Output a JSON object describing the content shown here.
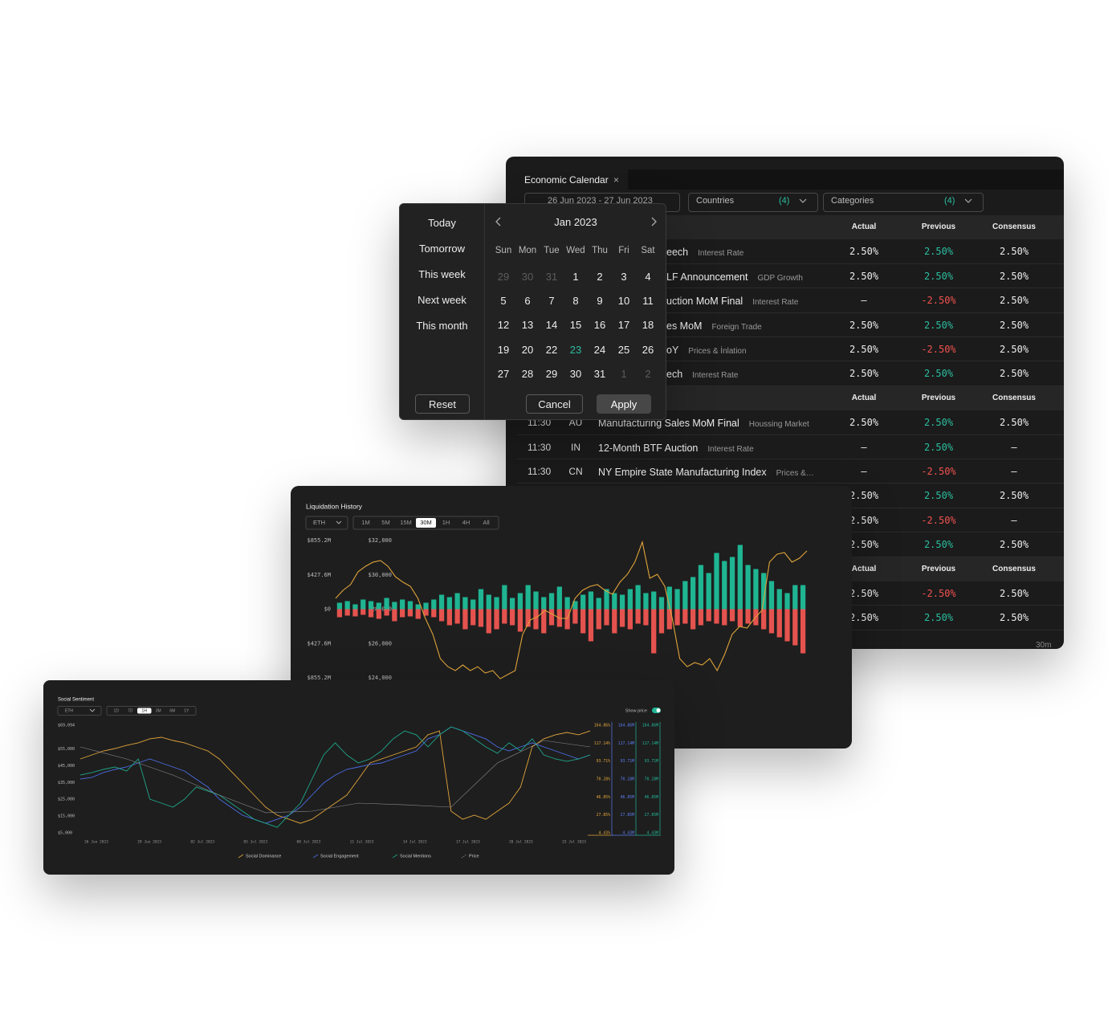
{
  "calendar": {
    "tab": "Economic Calendar",
    "tab_close": "×",
    "date_range": "26 Jun 2023  -  27 Jun 2023",
    "filters": [
      {
        "label": "Countries",
        "count": "(4)"
      },
      {
        "label": "Categories",
        "count": "(4)"
      }
    ],
    "columns": [
      "Actual",
      "Previous",
      "Consensus"
    ],
    "groups": [
      {
        "rows": [
          {
            "event": "eech",
            "category": "Interest Rate",
            "actual": "2.50%",
            "previous": "2.50%",
            "consensus": "2.50%"
          },
          {
            "event": "LF Announcement",
            "category": "GDP Growth",
            "actual": "2.50%",
            "previous": "2.50%",
            "consensus": "2.50%"
          },
          {
            "event": "uction MoM Final",
            "category": "Interest Rate",
            "actual": "–",
            "previous": "-2.50%",
            "consensus": "2.50%"
          },
          {
            "event": "es MoM",
            "category": "Foreign Trade",
            "actual": "2.50%",
            "previous": "2.50%",
            "consensus": "2.50%"
          },
          {
            "event": "oY",
            "category": "Prices & İnlation",
            "actual": "2.50%",
            "previous": "-2.50%",
            "consensus": "2.50%"
          },
          {
            "event": "ech",
            "category": "Interest Rate",
            "actual": "2.50%",
            "previous": "2.50%",
            "consensus": "2.50%"
          }
        ]
      },
      {
        "rows": [
          {
            "time": "11:30",
            "country": "AU",
            "event": "Manufacturing Sales MoM Final",
            "category": "Houssing Market",
            "actual": "2.50%",
            "previous": "2.50%",
            "consensus": "2.50%"
          },
          {
            "time": "11:30",
            "country": "IN",
            "event": "12-Month BTF Auction",
            "category": "Interest Rate",
            "actual": "–",
            "previous": "2.50%",
            "consensus": "–"
          },
          {
            "time": "11:30",
            "country": "CN",
            "event": "NY Empire State Manufacturing Index",
            "category": "Prices &…",
            "actual": "–",
            "previous": "-2.50%",
            "consensus": "–"
          },
          {
            "actual": "2.50%",
            "previous": "2.50%",
            "consensus": "2.50%"
          },
          {
            "actual": "2.50%",
            "previous": "-2.50%",
            "consensus": "–"
          },
          {
            "actual": "2.50%",
            "previous": "2.50%",
            "consensus": "2.50%"
          }
        ]
      },
      {
        "rows": [
          {
            "actual": "2.50%",
            "previous": "-2.50%",
            "consensus": "2.50%"
          },
          {
            "actual": "2.50%",
            "previous": "2.50%",
            "consensus": "2.50%"
          }
        ]
      }
    ],
    "footer": "30m"
  },
  "date_picker": {
    "presets": [
      "Today",
      "Tomorrow",
      "This week",
      "Next week",
      "This month"
    ],
    "reset": "Reset",
    "month": "Jan 2023",
    "weekdays": [
      "Sun",
      "Mon",
      "Tue",
      "Wed",
      "Thu",
      "Fri",
      "Sat"
    ],
    "weeks": [
      [
        {
          "day": 29,
          "muted": true
        },
        {
          "day": 30,
          "muted": true
        },
        {
          "day": 31,
          "muted": true
        },
        {
          "day": 1
        },
        {
          "day": 2
        },
        {
          "day": 3
        },
        {
          "day": 4
        }
      ],
      [
        {
          "day": 5
        },
        {
          "day": 6
        },
        {
          "day": 7
        },
        {
          "day": 8
        },
        {
          "day": 9
        },
        {
          "day": 10
        },
        {
          "day": 11
        }
      ],
      [
        {
          "day": 12
        },
        {
          "day": 13
        },
        {
          "day": 14
        },
        {
          "day": 15
        },
        {
          "day": 16
        },
        {
          "day": 17
        },
        {
          "day": 18
        }
      ],
      [
        {
          "day": 19
        },
        {
          "day": 20
        },
        {
          "day": 22
        },
        {
          "day": 23,
          "selected": true
        },
        {
          "day": 24
        },
        {
          "day": 25
        },
        {
          "day": 26
        }
      ],
      [
        {
          "day": 27
        },
        {
          "day": 28
        },
        {
          "day": 29
        },
        {
          "day": 30
        },
        {
          "day": 31
        },
        {
          "day": 1,
          "muted": true
        },
        {
          "day": 2,
          "muted": true
        }
      ]
    ],
    "cancel": "Cancel",
    "apply": "Apply"
  },
  "chart_data": [
    {
      "type": "bar",
      "title": "Liquidation History",
      "selector": "ETH",
      "timeframes": [
        "1M",
        "5M",
        "15M",
        "30M",
        "1H",
        "4H",
        "All"
      ],
      "active_timeframe": 3,
      "ylim": [
        -855.2,
        855.2
      ],
      "yticks": [
        {
          "value": 855.2,
          "label": "$855.2M"
        },
        {
          "value": 427.6,
          "label": "$427.6M"
        },
        {
          "value": 0,
          "label": "$0"
        },
        {
          "value": -427.6,
          "label": "$427.6M"
        },
        {
          "value": -855.2,
          "label": "$855.2M"
        }
      ],
      "y2lim": [
        24000,
        32000
      ],
      "y2ticks": [
        {
          "value": 32000,
          "label": "$32,000"
        },
        {
          "value": 30000,
          "label": "$30,000"
        },
        {
          "value": 28000,
          "label": "$28,000"
        },
        {
          "value": 26000,
          "label": "$26,000"
        },
        {
          "value": 24000,
          "label": "$24,000"
        }
      ],
      "series": [
        {
          "color": "#1fb592",
          "values": [
            80,
            100,
            60,
            120,
            100,
            80,
            140,
            90,
            120,
            100,
            60,
            80,
            120,
            180,
            150,
            200,
            150,
            120,
            250,
            180,
            150,
            300,
            140,
            200,
            300,
            220,
            150,
            200,
            280,
            150,
            100,
            180,
            220,
            140,
            250,
            200,
            180,
            250,
            300,
            200,
            220,
            150,
            280,
            250,
            350,
            400,
            550,
            450,
            700,
            600,
            650,
            800,
            550,
            500,
            450,
            350,
            250,
            200,
            300,
            300
          ]
        },
        {
          "color": "#e5534f",
          "values": [
            -100,
            -80,
            -90,
            -70,
            -100,
            -120,
            -80,
            -150,
            -100,
            -90,
            -120,
            -80,
            -100,
            -150,
            -200,
            -180,
            -250,
            -200,
            -220,
            -300,
            -250,
            -180,
            -200,
            -280,
            -220,
            -250,
            -300,
            -200,
            -220,
            -250,
            -180,
            -300,
            -400,
            -250,
            -200,
            -300,
            -220,
            -250,
            -180,
            -200,
            -550,
            -300,
            -250,
            -200,
            -180,
            -250,
            -200,
            -150,
            -180,
            -200,
            -150,
            -220,
            -180,
            -200,
            -250,
            -300,
            -350,
            -400,
            -450,
            -550
          ]
        },
        {
          "type": "line",
          "axis": "y2",
          "color": "#e0a43a",
          "values": [
            28630,
            29100,
            29430,
            30180,
            30500,
            30740,
            30830,
            30500,
            29890,
            29570,
            29330,
            28630,
            27460,
            26530,
            25120,
            24650,
            24420,
            24750,
            24420,
            24650,
            24280,
            24420,
            23950,
            24190,
            24420,
            26530,
            27370,
            27560,
            27930,
            27700,
            27460,
            27460,
            28630,
            29100,
            29330,
            29430,
            29100,
            28870,
            29570,
            30030,
            30740,
            31910,
            29800,
            30030,
            29330,
            27460,
            25120,
            24650,
            24890,
            24750,
            25120,
            24420,
            25360,
            26530,
            26990,
            26900,
            27460,
            27930,
            30740,
            31200,
            31300,
            30740,
            30970,
            31390
          ]
        }
      ]
    },
    {
      "type": "line",
      "title": "Social Sentiment",
      "selector": "ETH",
      "timeframes": [
        "1D",
        "7D",
        "1H",
        "3M",
        "6M",
        "1Y"
      ],
      "active_timeframe": 2,
      "toggle_label": "Show price",
      "show_price": true,
      "x_axis_labels": [
        "26 Jun 2023",
        "29 Jun 2023",
        "02 Jul 2023",
        "05 Jul 2023",
        "08 Jul 2023",
        "11 Jul 2023",
        "14 Jul 2023",
        "17 Jul 2023",
        "20 Jul 2023",
        "23 Jul 2023"
      ],
      "ylim": [
        5000,
        69094
      ],
      "yticks": [
        {
          "value": 69094,
          "label": "$69,094"
        },
        {
          "value": 55000,
          "label": "$55,000"
        },
        {
          "value": 45000,
          "label": "$45,000"
        },
        {
          "value": 35000,
          "label": "$35,000"
        },
        {
          "value": 25000,
          "label": "$25,000"
        },
        {
          "value": 15000,
          "label": "$15,000"
        },
        {
          "value": 5000,
          "label": "$5,000"
        }
      ],
      "right_axes": [
        {
          "color": "#e0a43a",
          "labels": [
            "164.86%",
            "117.14%",
            "93.71%",
            "70.28%",
            "46.85%",
            "27.85%",
            "4.43%"
          ]
        },
        {
          "color": "#5b7cf0",
          "labels": [
            "164.86M",
            "117.14M",
            "93.71M",
            "70.28M",
            "46.85M",
            "27.85M",
            "4.43M"
          ]
        },
        {
          "color": "#22b596",
          "labels": [
            "164.86M",
            "117.14M",
            "93.71M",
            "70.28M",
            "46.85M",
            "27.85M",
            "4.43M"
          ]
        }
      ],
      "series": [
        {
          "name": "Social Dominance",
          "color": "#e0a43a",
          "values": [
            49000,
            51400,
            53800,
            55200,
            57100,
            58600,
            61000,
            61900,
            60000,
            58600,
            56200,
            53800,
            49000,
            41800,
            34700,
            27500,
            20300,
            15500,
            13100,
            10700,
            13100,
            17900,
            22700,
            27500,
            37000,
            46600,
            49000,
            51400,
            53800,
            56200,
            63400,
            65700,
            17900,
            13100,
            15500,
            13100,
            17900,
            22700,
            32300,
            56200,
            61000,
            63400,
            64800,
            63400,
            65700
          ]
        },
        {
          "name": "Social Engagement",
          "color": "#4a6de5",
          "values": [
            37000,
            38000,
            40900,
            42800,
            44200,
            46600,
            49000,
            46600,
            44200,
            41800,
            37000,
            32300,
            25100,
            20300,
            15500,
            13100,
            10700,
            13100,
            15500,
            20300,
            27500,
            34700,
            39400,
            42800,
            44200,
            45700,
            46600,
            49000,
            51400,
            53800,
            61000,
            63400,
            68100,
            65700,
            63400,
            61000,
            56200,
            53800,
            56200,
            58600,
            56200,
            53800,
            51400,
            49000,
            51400
          ]
        },
        {
          "name": "Social Mentions",
          "color": "#1fa58a",
          "values": [
            39400,
            40900,
            42800,
            44200,
            41800,
            49000,
            25100,
            22700,
            20300,
            25100,
            32300,
            29900,
            27500,
            22700,
            17900,
            13100,
            10700,
            8300,
            15500,
            22700,
            37000,
            51400,
            58600,
            51400,
            46600,
            49000,
            53800,
            61000,
            65700,
            63400,
            56200,
            63400,
            68100,
            65700,
            61000,
            56200,
            52400,
            58600,
            53800,
            61000,
            51400,
            49000,
            47600,
            49000,
            51400
          ]
        },
        {
          "name": "Price",
          "color": "#8a8a8a",
          "dashed": true,
          "values": [
            56200,
            49000,
            39400,
            27500,
            17000,
            17900,
            22700,
            21700,
            20300,
            46600,
            60000,
            56200
          ]
        }
      ]
    }
  ]
}
